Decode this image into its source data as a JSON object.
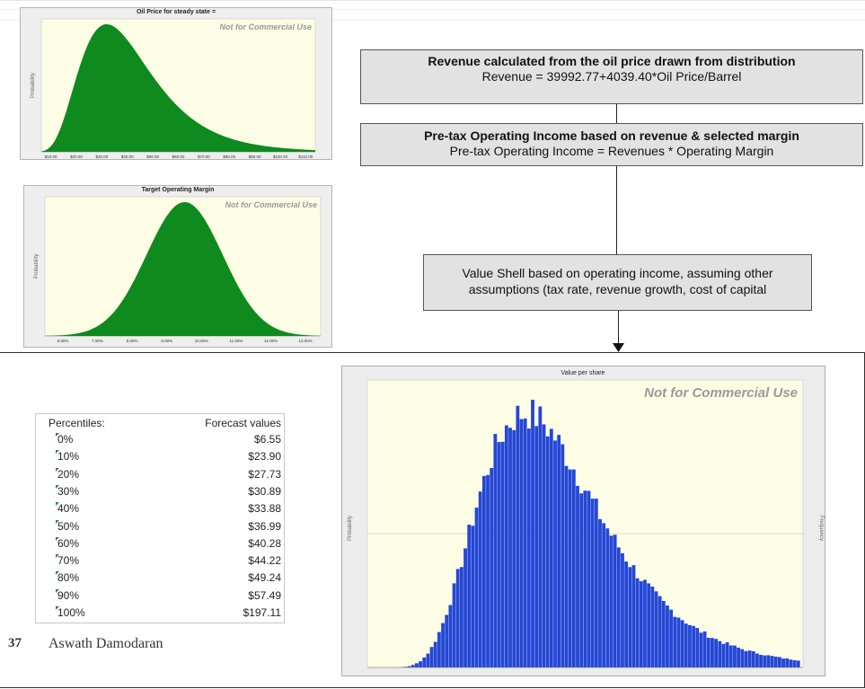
{
  "charts": {
    "oil": {
      "title": "Oil Price for steady state =",
      "ylabel": "Probability",
      "watermark": "Not for Commercial Use",
      "ticks": [
        "$10.00",
        "$20.00",
        "$30.00",
        "$40.00",
        "$50.00",
        "$60.00",
        "$70.00",
        "$80.00",
        "$90.00",
        "$100.00",
        "$110.00"
      ],
      "fill_color": "#0e8a1e"
    },
    "margin": {
      "title": "Target Operating Margin",
      "ylabel": "Probability",
      "watermark": "Not for Commercial Use",
      "ticks": [
        "6.00%",
        "7.00%",
        "8.00%",
        "9.00%",
        "10.00%",
        "11.00%",
        "12.00%",
        "13.00%"
      ],
      "fill_color": "#0e8a1e"
    },
    "value": {
      "title": "Value per share",
      "ylabel": "Probability",
      "ylabel_right": "Frequency",
      "watermark": "Not for Commercial Use",
      "bar_color": "#2447d6"
    }
  },
  "flow": {
    "box1": {
      "title": "Revenue calculated from the oil price drawn from distribution",
      "formula": "Revenue = 39992.77+4039.40*Oil Price/Barrel"
    },
    "box2": {
      "title": "Pre-tax Operating Income based on revenue & selected margin",
      "formula": "Pre-tax Operating Income = Revenues * Operating Margin"
    },
    "box3": {
      "line1": "Value Shell based on operating income, assuming other",
      "line2": "assumptions (tax rate, revenue growth, cost of capital"
    }
  },
  "percentiles": {
    "header_left": "Percentiles:",
    "header_right": "Forecast values",
    "rows": [
      {
        "p": "0%",
        "v": "$6.55"
      },
      {
        "p": "10%",
        "v": "$23.90"
      },
      {
        "p": "20%",
        "v": "$27.73"
      },
      {
        "p": "30%",
        "v": "$30.89"
      },
      {
        "p": "40%",
        "v": "$33.88"
      },
      {
        "p": "50%",
        "v": "$36.99"
      },
      {
        "p": "60%",
        "v": "$40.28"
      },
      {
        "p": "70%",
        "v": "$44.22"
      },
      {
        "p": "80%",
        "v": "$49.24"
      },
      {
        "p": "90%",
        "v": "$57.49"
      },
      {
        "p": "100%",
        "v": "$197.11"
      }
    ]
  },
  "footer": {
    "page_number": "37",
    "author": "Aswath Damodaran"
  }
}
